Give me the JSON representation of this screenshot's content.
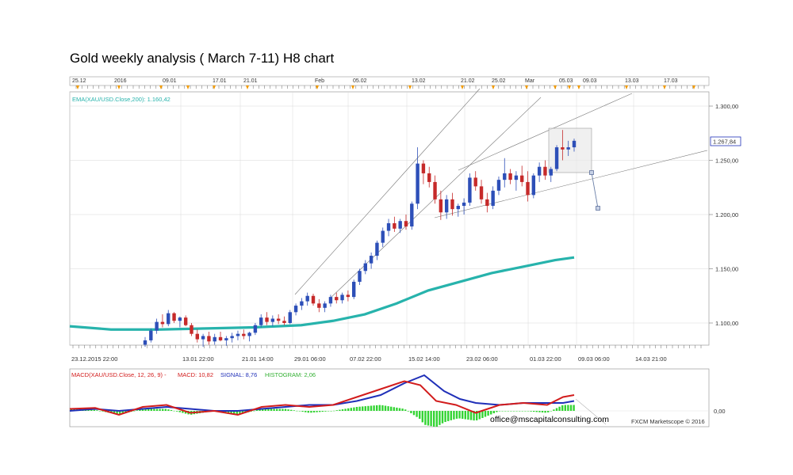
{
  "title": "Gold weekly analysis ( March 7-11) H8 chart",
  "colors": {
    "bull": "#2d4fb8",
    "bear": "#c62a2a",
    "ema": "#27b3ac",
    "macd": "#d21c1c",
    "signal": "#1f2fb8",
    "histogram": "#33d433",
    "grid": "#d8d8d8",
    "trendline": "#777777",
    "marker": "#f29a00"
  },
  "top_axis": {
    "labels": [
      "25.12",
      "2016",
      "09.01",
      "17.01",
      "21.01",
      "Feb",
      "05.02",
      "13.02",
      "21.02",
      "25.02",
      "Mar",
      "05.03",
      "09.03",
      "13.03",
      "17.03"
    ]
  },
  "bottom_axis": {
    "labels": [
      "23.12.2015 22:00",
      "13.01 22:00",
      "21.01 14:00",
      "29.01 06:00",
      "07.02 22:00",
      "15.02 14:00",
      "23.02 06:00",
      "01.03 22:00",
      "09.03 06:00",
      "14.03 21:00"
    ]
  },
  "price_panel": {
    "indicator_label": "EMA(XAU/USD.Close,200): 1.160,42",
    "last_price_label": "1.267,84",
    "yticks": [
      {
        "v": 1300,
        "label": "1.300,00"
      },
      {
        "v": 1250,
        "label": "1.250,00"
      },
      {
        "v": 1200,
        "label": "1.200,00"
      },
      {
        "v": 1150,
        "label": "1.150,00"
      },
      {
        "v": 1100,
        "label": "1.100,00"
      }
    ]
  },
  "macd_panel": {
    "label": "MACD(XAU/USD.Close, 12, 26, 9) -",
    "macd_text": "MACD: 10,82",
    "signal_text": "SIGNAL: 8,76",
    "histogram_text": "HISTOGRAM: 2,06",
    "ytick_label": "0,00"
  },
  "watermark": "office@mscapitalconsulting.com",
  "credit": "FXCM Marketscope © 2016",
  "chart_data": {
    "type": "candlestick",
    "instrument": "XAU/USD",
    "timeframe": "H8",
    "ylim": [
      1075,
      1320
    ],
    "ema200_last": 1160.42,
    "last_price": 1267.84,
    "macd": {
      "fast": 12,
      "slow": 26,
      "signal": 9,
      "macd": 10.82,
      "signal_value": 8.76,
      "histogram": 2.06
    },
    "candles": [
      [
        1080,
        1087,
        1078,
        1084
      ],
      [
        1084,
        1095,
        1082,
        1093
      ],
      [
        1093,
        1104,
        1090,
        1101
      ],
      [
        1101,
        1108,
        1096,
        1099
      ],
      [
        1099,
        1112,
        1097,
        1109
      ],
      [
        1109,
        1110,
        1100,
        1102
      ],
      [
        1102,
        1106,
        1096,
        1105
      ],
      [
        1105,
        1107,
        1097,
        1098
      ],
      [
        1098,
        1100,
        1088,
        1090
      ],
      [
        1090,
        1094,
        1082,
        1085
      ],
      [
        1085,
        1090,
        1078,
        1088
      ],
      [
        1088,
        1092,
        1080,
        1083
      ],
      [
        1083,
        1090,
        1080,
        1087
      ],
      [
        1087,
        1092,
        1083,
        1084
      ],
      [
        1084,
        1088,
        1079,
        1086
      ],
      [
        1086,
        1091,
        1082,
        1088
      ],
      [
        1088,
        1093,
        1084,
        1090
      ],
      [
        1090,
        1094,
        1085,
        1088
      ],
      [
        1088,
        1092,
        1083,
        1091
      ],
      [
        1091,
        1100,
        1089,
        1098
      ],
      [
        1098,
        1108,
        1096,
        1105
      ],
      [
        1105,
        1110,
        1098,
        1101
      ],
      [
        1101,
        1107,
        1097,
        1104
      ],
      [
        1104,
        1108,
        1099,
        1102
      ],
      [
        1102,
        1106,
        1098,
        1100
      ],
      [
        1100,
        1112,
        1099,
        1110
      ],
      [
        1110,
        1118,
        1107,
        1116
      ],
      [
        1116,
        1123,
        1112,
        1120
      ],
      [
        1120,
        1128,
        1116,
        1125
      ],
      [
        1125,
        1127,
        1116,
        1118
      ],
      [
        1118,
        1122,
        1110,
        1114
      ],
      [
        1114,
        1120,
        1110,
        1118
      ],
      [
        1118,
        1126,
        1115,
        1124
      ],
      [
        1124,
        1128,
        1118,
        1121
      ],
      [
        1121,
        1128,
        1118,
        1126
      ],
      [
        1126,
        1130,
        1120,
        1124
      ],
      [
        1124,
        1140,
        1122,
        1138
      ],
      [
        1138,
        1150,
        1135,
        1148
      ],
      [
        1148,
        1158,
        1145,
        1155
      ],
      [
        1155,
        1165,
        1150,
        1162
      ],
      [
        1162,
        1176,
        1158,
        1174
      ],
      [
        1174,
        1188,
        1170,
        1185
      ],
      [
        1185,
        1196,
        1180,
        1192
      ],
      [
        1192,
        1198,
        1184,
        1187
      ],
      [
        1187,
        1196,
        1183,
        1194
      ],
      [
        1194,
        1200,
        1186,
        1189
      ],
      [
        1189,
        1212,
        1186,
        1210
      ],
      [
        1210,
        1262,
        1205,
        1247
      ],
      [
        1247,
        1250,
        1228,
        1238
      ],
      [
        1238,
        1244,
        1225,
        1230
      ],
      [
        1230,
        1236,
        1210,
        1214
      ],
      [
        1214,
        1222,
        1195,
        1202
      ],
      [
        1202,
        1218,
        1196,
        1214
      ],
      [
        1214,
        1220,
        1199,
        1205
      ],
      [
        1205,
        1210,
        1198,
        1208
      ],
      [
        1208,
        1215,
        1200,
        1211
      ],
      [
        1211,
        1238,
        1208,
        1234
      ],
      [
        1234,
        1240,
        1222,
        1226
      ],
      [
        1226,
        1232,
        1210,
        1214
      ],
      [
        1214,
        1220,
        1202,
        1208
      ],
      [
        1208,
        1226,
        1205,
        1222
      ],
      [
        1222,
        1235,
        1218,
        1232
      ],
      [
        1232,
        1252,
        1225,
        1238
      ],
      [
        1238,
        1242,
        1228,
        1232
      ],
      [
        1232,
        1240,
        1222,
        1236
      ],
      [
        1236,
        1245,
        1226,
        1230
      ],
      [
        1230,
        1240,
        1212,
        1218
      ],
      [
        1218,
        1238,
        1215,
        1236
      ],
      [
        1236,
        1248,
        1230,
        1244
      ],
      [
        1244,
        1250,
        1232,
        1236
      ],
      [
        1236,
        1244,
        1230,
        1242
      ],
      [
        1242,
        1264,
        1240,
        1262
      ],
      [
        1262,
        1278,
        1250,
        1260
      ],
      [
        1260,
        1268,
        1254,
        1262
      ],
      [
        1262,
        1270,
        1258,
        1268
      ]
    ]
  }
}
